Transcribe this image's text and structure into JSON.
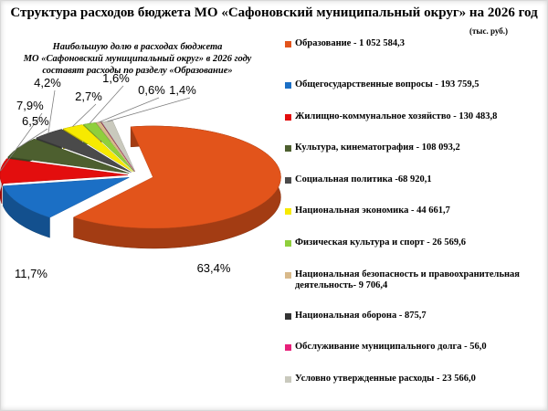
{
  "header": {
    "title": "Структура расходов бюджета МО «Сафоновский муниципальный округ» на 2026 год",
    "unit": "(тыс. руб.)",
    "note_lines": [
      "Наибольшую долю в расходах бюджета",
      "МО «Сафоновский муниципальный округ» в 2026 году",
      "составят расходы по разделу «Образование»"
    ]
  },
  "chart_data": {
    "type": "pie",
    "style": "3d-exploded",
    "unit": "тыс. руб.",
    "legend_position": "right",
    "series": [
      {
        "label": "Образование - 1 052 584,3",
        "name": "Образование",
        "value": 1052584.3,
        "percent_label": "63,4%",
        "color": "#e2541b"
      },
      {
        "label": "Общегосударственные вопросы - 193 759,5",
        "name": "Общегосударственные вопросы",
        "value": 193759.5,
        "percent_label": "11,7%",
        "color": "#1b6fc5"
      },
      {
        "label": "Жилищно-коммунальное хозяйство - 130 483,8",
        "name": "Жилищно-коммунальное хозяйство",
        "value": 130483.8,
        "percent_label": "7,9%",
        "color": "#e30e0e"
      },
      {
        "label": "Культура, кинематография - 108 093,2",
        "name": "Культура, кинематография",
        "value": 108093.2,
        "percent_label": "6,5%",
        "color": "#4d5f2f"
      },
      {
        "label": "Социальная политика -68 920,1",
        "name": "Социальная политика",
        "value": 68920.1,
        "percent_label": "4,2%",
        "color": "#4a4a4a"
      },
      {
        "label": "Национальная экономика - 44 661,7",
        "name": "Национальная экономика",
        "value": 44661.7,
        "percent_label": "2,7%",
        "color": "#f7ea00"
      },
      {
        "label": "Физическая культура и спорт - 26 569,6",
        "name": "Физическая культура и спорт",
        "value": 26569.6,
        "percent_label": "1,6%",
        "color": "#8fcf3c"
      },
      {
        "label": "Национальная безопасность и правоохранительная деятельность- 9 706,4",
        "name": "Национальная безопасность и правоохранительная деятельность",
        "value": 9706.4,
        "percent_label": "0,6%",
        "color": "#d8b98a"
      },
      {
        "label": "Национальная оборона - 875,7",
        "name": "Национальная оборона",
        "value": 875.7,
        "percent_label": "",
        "color": "#333333"
      },
      {
        "label": "Обслуживание муниципального долга - 56,0",
        "name": "Обслуживание муниципального долга",
        "value": 56.0,
        "percent_label": "",
        "color": "#e8207a"
      },
      {
        "label": "Условно утвержденные расходы - 23 566,0",
        "name": "Условно утвержденные расходы",
        "value": 23566.0,
        "percent_label": "1,4%",
        "color": "#c9c9bd"
      }
    ]
  }
}
